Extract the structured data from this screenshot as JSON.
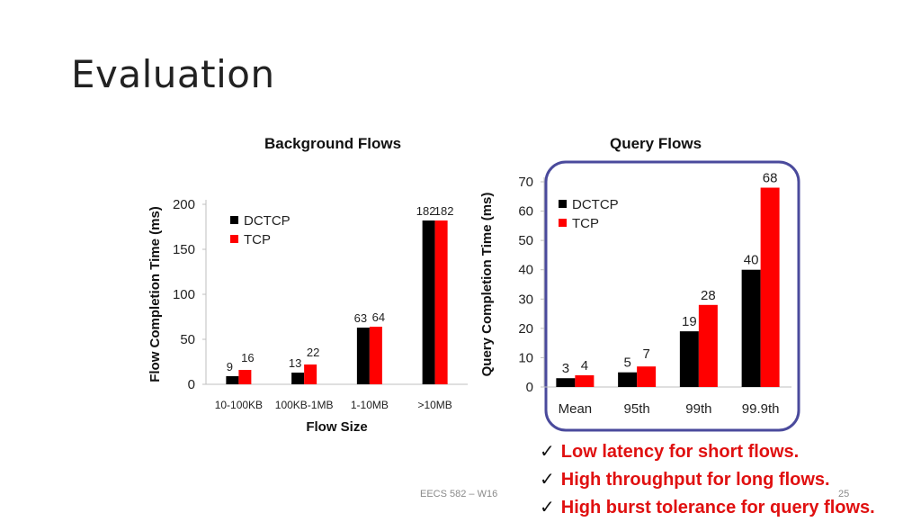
{
  "slide": {
    "title": "Evaluation",
    "footer_text": "EECS 582 – W16",
    "page_number": "25",
    "bullets": [
      "Low latency for short flows.",
      "High throughput for long flows.",
      "High burst tolerance for query flows."
    ]
  },
  "colors": {
    "dctcp": "#000000",
    "tcp": "#ff0000",
    "highlight_border": "#4a4a9c",
    "bullet_text": "#e01010"
  },
  "icons": {
    "bullet": "checkmark-icon"
  },
  "chart_data": [
    {
      "type": "bar",
      "title": "Background Flows",
      "xlabel": "Flow Size",
      "ylabel": "Flow Completion Time (ms)",
      "categories": [
        "10-100KB",
        "100KB-1MB",
        "1-10MB",
        ">10MB"
      ],
      "series": [
        {
          "name": "DCTCP",
          "values": [
            9,
            13,
            63,
            182
          ],
          "color": "#000000"
        },
        {
          "name": "TCP",
          "values": [
            16,
            22,
            64,
            182
          ],
          "color": "#ff0000"
        }
      ],
      "ylim": [
        0,
        200
      ],
      "yticks": [
        0,
        50,
        100,
        150,
        200
      ],
      "legend": "top-left",
      "grid": false
    },
    {
      "type": "bar",
      "title": "Query Flows",
      "xlabel": "",
      "ylabel": "Query Completion Time (ms)",
      "categories": [
        "Mean",
        "95th",
        "99th",
        "99.9th"
      ],
      "series": [
        {
          "name": "DCTCP",
          "values": [
            3,
            5,
            19,
            40
          ],
          "color": "#000000"
        },
        {
          "name": "TCP",
          "values": [
            4,
            7,
            28,
            68
          ],
          "color": "#ff0000"
        }
      ],
      "ylim": [
        0,
        70
      ],
      "yticks": [
        0,
        10,
        20,
        30,
        40,
        50,
        60,
        70
      ],
      "legend": "top-left",
      "grid": false,
      "highlighted": true
    }
  ]
}
